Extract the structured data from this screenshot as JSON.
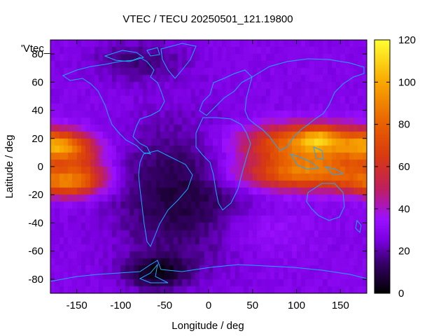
{
  "chart_data": {
    "type": "heatmap",
    "title": "VTEC / TECU 20250501_121.19800",
    "key_label": "'Vtec_",
    "xlabel": "Longitude / deg",
    "ylabel": "Latitude / deg",
    "xlim": [
      -180,
      180
    ],
    "ylim": [
      -90,
      90
    ],
    "x_ticks": [
      -150,
      -100,
      -50,
      0,
      50,
      100,
      150
    ],
    "y_ticks": [
      -80,
      -60,
      -40,
      -20,
      0,
      20,
      40,
      60,
      80
    ],
    "colorbar": {
      "range": [
        0,
        120
      ],
      "ticks": [
        0,
        20,
        40,
        60,
        80,
        100,
        120
      ],
      "palette": [
        {
          "v": 0,
          "color": "#000000"
        },
        {
          "v": 15,
          "color": "#3a0070"
        },
        {
          "v": 25,
          "color": "#7a00e0"
        },
        {
          "v": 35,
          "color": "#9a10ff"
        },
        {
          "v": 50,
          "color": "#c0205a"
        },
        {
          "v": 65,
          "color": "#d83a10"
        },
        {
          "v": 80,
          "color": "#e86000"
        },
        {
          "v": 100,
          "color": "#f8a800"
        },
        {
          "v": 120,
          "color": "#ffff30"
        }
      ]
    },
    "field_features": [
      {
        "lon": 115,
        "lat": 18,
        "sigma_lon": 55,
        "sigma_lat": 9,
        "value": 55
      },
      {
        "lon": 110,
        "lat": -6,
        "sigma_lon": 55,
        "sigma_lat": 8,
        "value": 52
      },
      {
        "lon": 110,
        "lat": 6,
        "sigma_lon": 50,
        "sigma_lat": 8,
        "value": 20
      },
      {
        "lon": 125,
        "lat": 20,
        "sigma_lon": 15,
        "sigma_lat": 5,
        "value": 25
      },
      {
        "lon": -168,
        "lat": 14,
        "sigma_lon": 25,
        "sigma_lat": 7,
        "value": 50
      },
      {
        "lon": -160,
        "lat": -12,
        "sigma_lon": 28,
        "sigma_lat": 7,
        "value": 48
      },
      {
        "lon": -140,
        "lat": 0,
        "sigma_lon": 20,
        "sigma_lat": 8,
        "value": 20
      },
      {
        "lon": -30,
        "lat": -20,
        "sigma_lon": 55,
        "sigma_lat": 35,
        "value": -20
      },
      {
        "lon": -60,
        "lat": -75,
        "sigma_lon": 25,
        "sigma_lat": 8,
        "value": -22
      },
      {
        "lon": -80,
        "lat": 75,
        "sigma_lon": 40,
        "sigma_lat": 10,
        "value": -12
      },
      {
        "lon": 60,
        "lat": -45,
        "sigma_lon": 40,
        "sigma_lat": 12,
        "value": 8
      }
    ],
    "field_base": 28
  }
}
